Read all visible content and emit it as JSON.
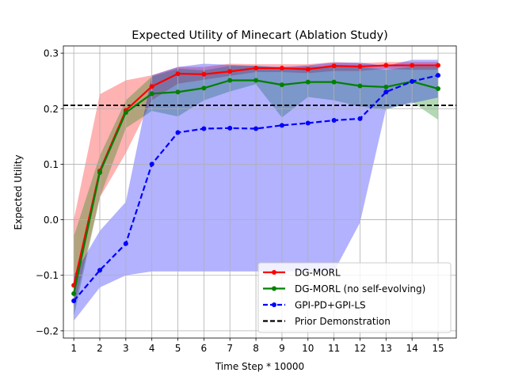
{
  "chart_data": {
    "type": "line",
    "title": "Expected Utility of Minecart (Ablation Study)",
    "xlabel": "Time Step * 10000",
    "ylabel": "Expected Utility",
    "xlim": [
      0.6,
      15.7
    ],
    "ylim": [
      -0.213,
      0.313
    ],
    "xticks": [
      1,
      2,
      3,
      4,
      5,
      6,
      7,
      8,
      9,
      10,
      11,
      12,
      13,
      14,
      15
    ],
    "yticks": [
      -0.2,
      -0.1,
      0.0,
      0.1,
      0.2,
      0.3
    ],
    "ytick_labels": [
      "−0.2",
      "−0.1",
      "0.0",
      "0.1",
      "0.2",
      "0.3"
    ],
    "grid": true,
    "legend_position": "lower-right",
    "x": [
      1,
      2,
      3,
      4,
      5,
      6,
      7,
      8,
      9,
      10,
      11,
      12,
      13,
      14,
      15
    ],
    "series": [
      {
        "name": "DG-MORL",
        "color": "#ff0000",
        "linestyle": "solid",
        "values": [
          -0.118,
          0.088,
          0.197,
          0.24,
          0.263,
          0.262,
          0.267,
          0.273,
          0.273,
          0.271,
          0.277,
          0.276,
          0.278,
          0.278,
          0.278
        ],
        "lower": [
          -0.16,
          0.04,
          0.12,
          0.215,
          0.245,
          0.252,
          0.259,
          0.266,
          0.266,
          0.264,
          0.268,
          0.268,
          0.272,
          0.27,
          0.27
        ],
        "upper": [
          0.0,
          0.226,
          0.251,
          0.26,
          0.275,
          0.275,
          0.281,
          0.28,
          0.28,
          0.28,
          0.284,
          0.282,
          0.284,
          0.284,
          0.284
        ]
      },
      {
        "name": "DG-MORL (no self-evolving)",
        "color": "#008000",
        "linestyle": "solid",
        "values": [
          -0.133,
          0.085,
          0.193,
          0.227,
          0.23,
          0.237,
          0.251,
          0.251,
          0.243,
          0.248,
          0.248,
          0.241,
          0.239,
          0.249,
          0.236
        ],
        "lower": [
          -0.175,
          0.04,
          0.165,
          0.196,
          0.186,
          0.215,
          0.231,
          0.244,
          0.184,
          0.221,
          0.215,
          0.204,
          0.198,
          0.212,
          0.18
        ],
        "upper": [
          -0.03,
          0.115,
          0.215,
          0.258,
          0.272,
          0.269,
          0.277,
          0.277,
          0.273,
          0.276,
          0.275,
          0.275,
          0.27,
          0.276,
          0.276
        ]
      },
      {
        "name": "GPI-PD+GPI-LS",
        "color": "#0000ff",
        "linestyle": "dashed",
        "values": [
          -0.146,
          -0.091,
          -0.043,
          0.1,
          0.157,
          0.164,
          0.165,
          0.164,
          0.17,
          0.174,
          0.179,
          0.182,
          0.23,
          0.249,
          0.26
        ],
        "lower": [
          -0.182,
          -0.122,
          -0.1,
          -0.093,
          -0.093,
          -0.093,
          -0.093,
          -0.093,
          -0.093,
          -0.093,
          -0.093,
          -0.005,
          0.2,
          0.21,
          0.22
        ],
        "upper": [
          -0.1,
          -0.02,
          0.032,
          0.26,
          0.275,
          0.281,
          0.279,
          0.277,
          0.275,
          0.278,
          0.283,
          0.283,
          0.277,
          0.288,
          0.288
        ]
      }
    ],
    "reference_line": {
      "name": "Prior Demonstration",
      "y": 0.206,
      "color": "#000000",
      "linestyle": "dashed"
    }
  }
}
